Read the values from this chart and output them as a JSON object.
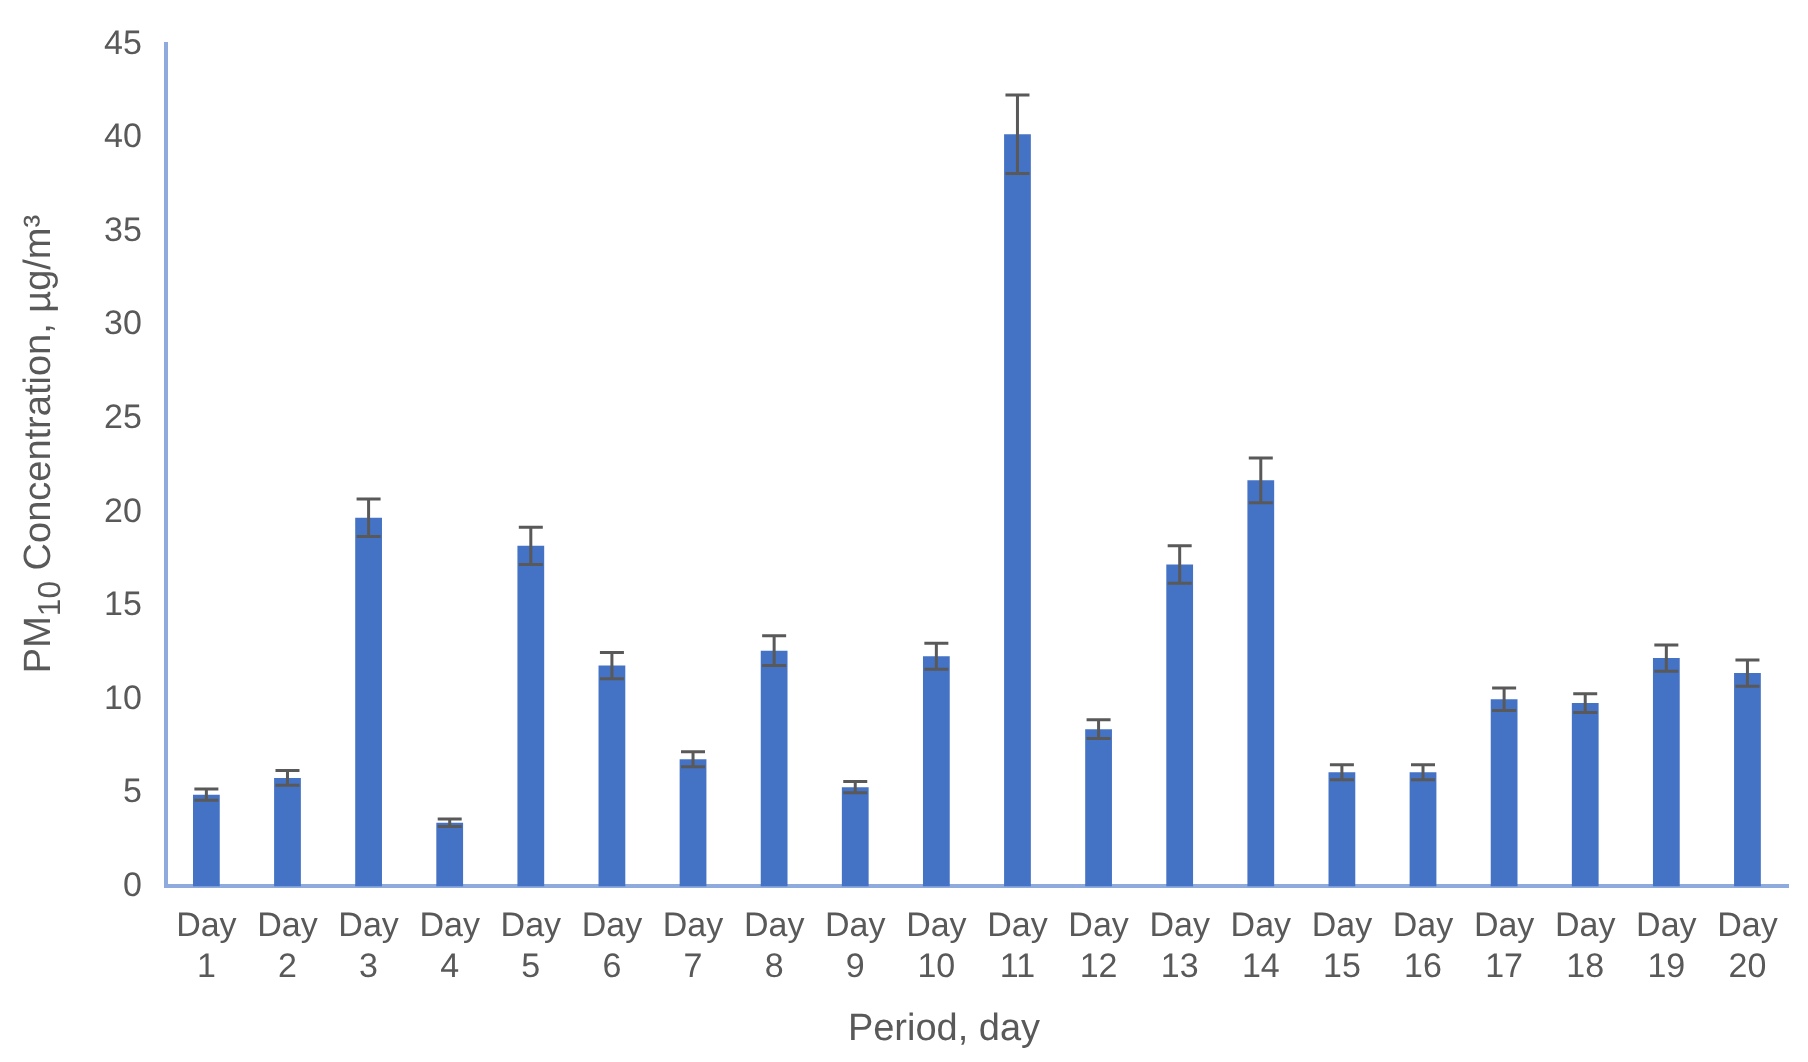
{
  "chart_data": {
    "type": "bar",
    "xlabel": "Period, day",
    "ylabel": "PM$_{10}$ Concentration, µg/m³",
    "categories": [
      "Day 1",
      "Day 2",
      "Day 3",
      "Day 4",
      "Day 5",
      "Day 6",
      "Day 7",
      "Day 8",
      "Day 9",
      "Day 10",
      "Day 11",
      "Day 12",
      "Day 13",
      "Day 14",
      "Day 15",
      "Day 16",
      "Day 17",
      "Day 18",
      "Day 19",
      "Day 20"
    ],
    "values": [
      4.9,
      5.8,
      19.7,
      3.4,
      18.2,
      11.8,
      6.8,
      12.6,
      5.3,
      12.3,
      40.2,
      8.4,
      17.2,
      21.7,
      6.1,
      6.1,
      10.0,
      9.8,
      12.2,
      11.4
    ],
    "errors": [
      0.3,
      0.4,
      1.0,
      0.2,
      1.0,
      0.7,
      0.4,
      0.8,
      0.3,
      0.7,
      2.1,
      0.5,
      1.0,
      1.2,
      0.4,
      0.4,
      0.6,
      0.5,
      0.7,
      0.7
    ],
    "color": "#4472c4",
    "ylim": [
      0,
      45
    ],
    "yticks": [
      0,
      5,
      10,
      15,
      20,
      25,
      30,
      35,
      40,
      45
    ],
    "grid": false,
    "legend": false
  }
}
